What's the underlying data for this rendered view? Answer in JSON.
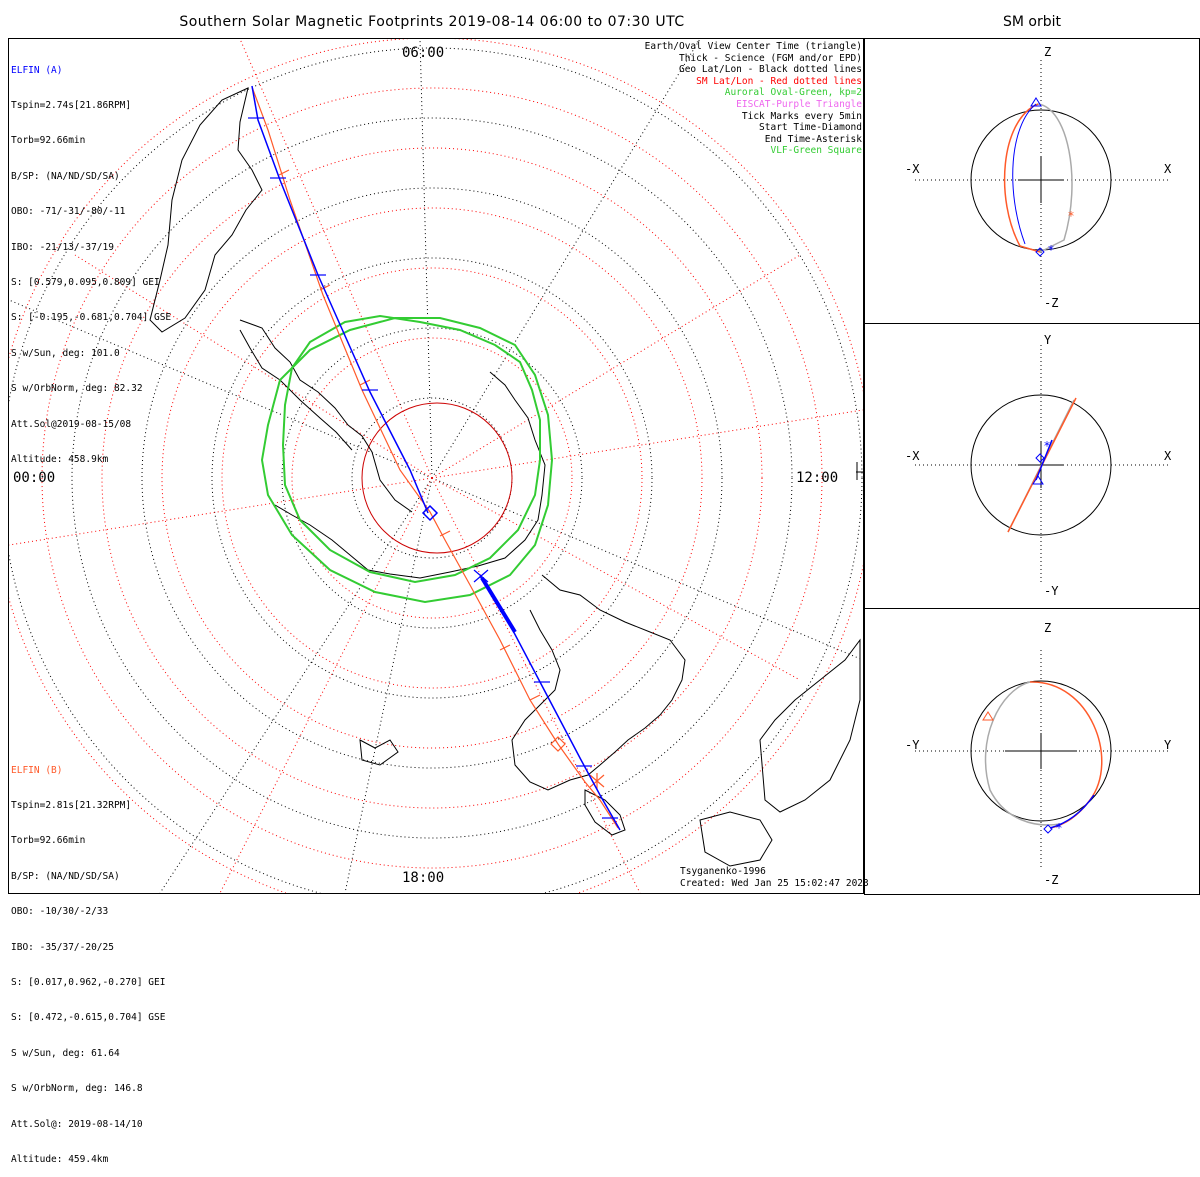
{
  "title": "Southern Solar Magnetic Footprints 2019-08-14 06:00 to 07:30 UTC",
  "sm_orbit_title": "SM orbit",
  "mlt_labels": {
    "top": "06:00",
    "bottom": "18:00",
    "left": "00:00",
    "right": "12:00"
  },
  "elfin_a": {
    "name": "ELFIN (A)",
    "lines": [
      "Tspin=2.74s[21.86RPM]",
      "Torb=92.66min",
      "B/SP: (NA/ND/SD/SA)",
      "OBO: -71/-31/-80/-11",
      "IBO: -21/13/-37/19",
      "S: [0.579,0.095,0.809] GEI",
      "S: [-0.195,-0.681,0.704] GSE",
      "S w/Sun, deg: 101.0",
      "S w/OrbNorm, deg: 82.32",
      "Att.Sol@2019-08-15/08",
      "Altitude: 458.9km"
    ],
    "color": "#0000ff"
  },
  "elfin_b": {
    "name": "ELFIN (B)",
    "lines": [
      "Tspin=2.81s[21.32RPM]",
      "Torb=92.66min",
      "B/SP: (NA/ND/SD/SA)",
      "OBO: -10/30/-2/33",
      "IBO: -35/37/-20/25",
      "S: [0.017,0.962,-0.270] GEI",
      "S: [0.472,-0.615,0.704] GSE",
      "S w/Sun, deg: 61.64",
      "S w/OrbNorm, deg: 146.8",
      "Att.Sol@: 2019-08-14/10",
      "Altitude: 459.4km"
    ],
    "color": "#ff5a2a"
  },
  "legend": [
    {
      "text": "Earth/Oval View Center Time (triangle)",
      "color": "#000000"
    },
    {
      "text": "Thick - Science (FGM and/or EPD)",
      "color": "#000000"
    },
    {
      "text": "Geo Lat/Lon - Black dotted lines",
      "color": "#000000"
    },
    {
      "text": "SM Lat/Lon - Red dotted lines",
      "color": "#ff0000"
    },
    {
      "text": "Auroral Oval-Green, kp=2",
      "color": "#33cc33"
    },
    {
      "text": "EISCAT-Purple Triangle",
      "color": "#ee66ee"
    },
    {
      "text": "Tick Marks every 5min",
      "color": "#000000"
    },
    {
      "text": "Start Time-Diamond",
      "color": "#000000"
    },
    {
      "text": "End Time-Asterisk",
      "color": "#000000"
    },
    {
      "text": "VLF-Green Square",
      "color": "#33cc33"
    }
  ],
  "credit": {
    "model": "Tsyganenko-1996",
    "created": "Created: Wed Jan 25 15:02:47 2023"
  },
  "panels": [
    {
      "top": "Z",
      "bottom": "-Z",
      "left": "-X",
      "right": "X"
    },
    {
      "top": "Y",
      "bottom": "-Y",
      "left": "-X",
      "right": "X"
    },
    {
      "top": "Z",
      "bottom": "-Z",
      "left": "-Y",
      "right": "Y"
    }
  ],
  "colors": {
    "elfin_a": "#0000ff",
    "elfin_b": "#ff5a2a",
    "oval": "#33cc33",
    "sm_grid": "#ff0000",
    "geo_grid": "#000000"
  }
}
